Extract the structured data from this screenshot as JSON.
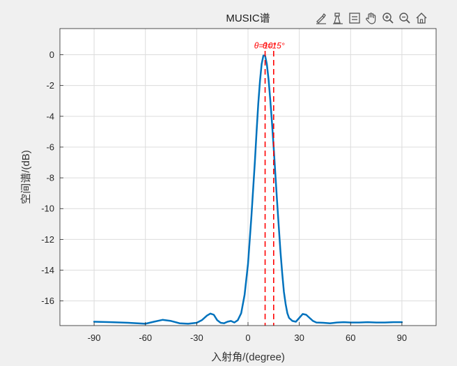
{
  "toolbar": {
    "icons": [
      "brush-icon",
      "data-tip-icon",
      "legend-icon",
      "pan-hand-icon",
      "zoom-in-icon",
      "zoom-out-icon",
      "home-icon"
    ]
  },
  "chart_data": {
    "type": "line",
    "title": "MUSIC谱",
    "xlabel": "入射角/(degree)",
    "ylabel": "空间谱/(dB)",
    "xlim": [
      -110,
      110
    ],
    "ylim": [
      -17.6,
      1.7
    ],
    "xticks": [
      -90,
      -60,
      -30,
      0,
      30,
      60,
      90
    ],
    "yticks": [
      0,
      -2,
      -4,
      -6,
      -8,
      -10,
      -12,
      -14,
      -16
    ],
    "grid": true,
    "series": [
      {
        "color": "#0072bd",
        "x": [
          -90,
          -80,
          -70,
          -60,
          -55,
          -50,
          -45,
          -40,
          -35,
          -30,
          -27,
          -24,
          -22,
          -20,
          -18,
          -16,
          -14,
          -12,
          -10,
          -8,
          -6,
          -4,
          -2,
          0,
          2,
          4,
          5,
          6,
          7,
          8,
          9,
          10,
          11,
          12,
          13,
          14,
          15,
          16,
          17,
          18,
          19,
          20,
          21,
          22,
          23,
          24,
          26,
          28,
          30,
          32,
          34,
          36,
          38,
          40,
          44,
          48,
          52,
          56,
          60,
          65,
          70,
          75,
          80,
          85,
          90
        ],
        "y": [
          -17.35,
          -17.38,
          -17.42,
          -17.48,
          -17.35,
          -17.23,
          -17.3,
          -17.45,
          -17.48,
          -17.42,
          -17.25,
          -16.95,
          -16.82,
          -16.9,
          -17.25,
          -17.42,
          -17.45,
          -17.35,
          -17.3,
          -17.4,
          -17.25,
          -16.8,
          -15.6,
          -13.6,
          -10.5,
          -7.0,
          -5.0,
          -3.2,
          -1.7,
          -0.6,
          -0.05,
          -0.05,
          -0.6,
          -1.6,
          -2.9,
          -4.4,
          -6.0,
          -7.8,
          -9.5,
          -11.2,
          -12.8,
          -14.2,
          -15.4,
          -16.2,
          -16.8,
          -17.1,
          -17.3,
          -17.35,
          -17.1,
          -16.85,
          -16.9,
          -17.1,
          -17.3,
          -17.4,
          -17.42,
          -17.45,
          -17.4,
          -17.38,
          -17.4,
          -17.4,
          -17.38,
          -17.4,
          -17.4,
          -17.38,
          -17.38
        ]
      }
    ],
    "markers": [
      {
        "x": 10,
        "color": "#ff0000",
        "style": "dashed"
      },
      {
        "x": 15,
        "color": "#ff0000",
        "style": "dashed"
      }
    ],
    "annotations": [
      {
        "text": "θ=10°",
        "x": 10,
        "y": 0.4,
        "color": "#ff0000"
      },
      {
        "text": "θ=15°",
        "x": 15,
        "y": 0.4,
        "color": "#ff0000"
      }
    ]
  }
}
